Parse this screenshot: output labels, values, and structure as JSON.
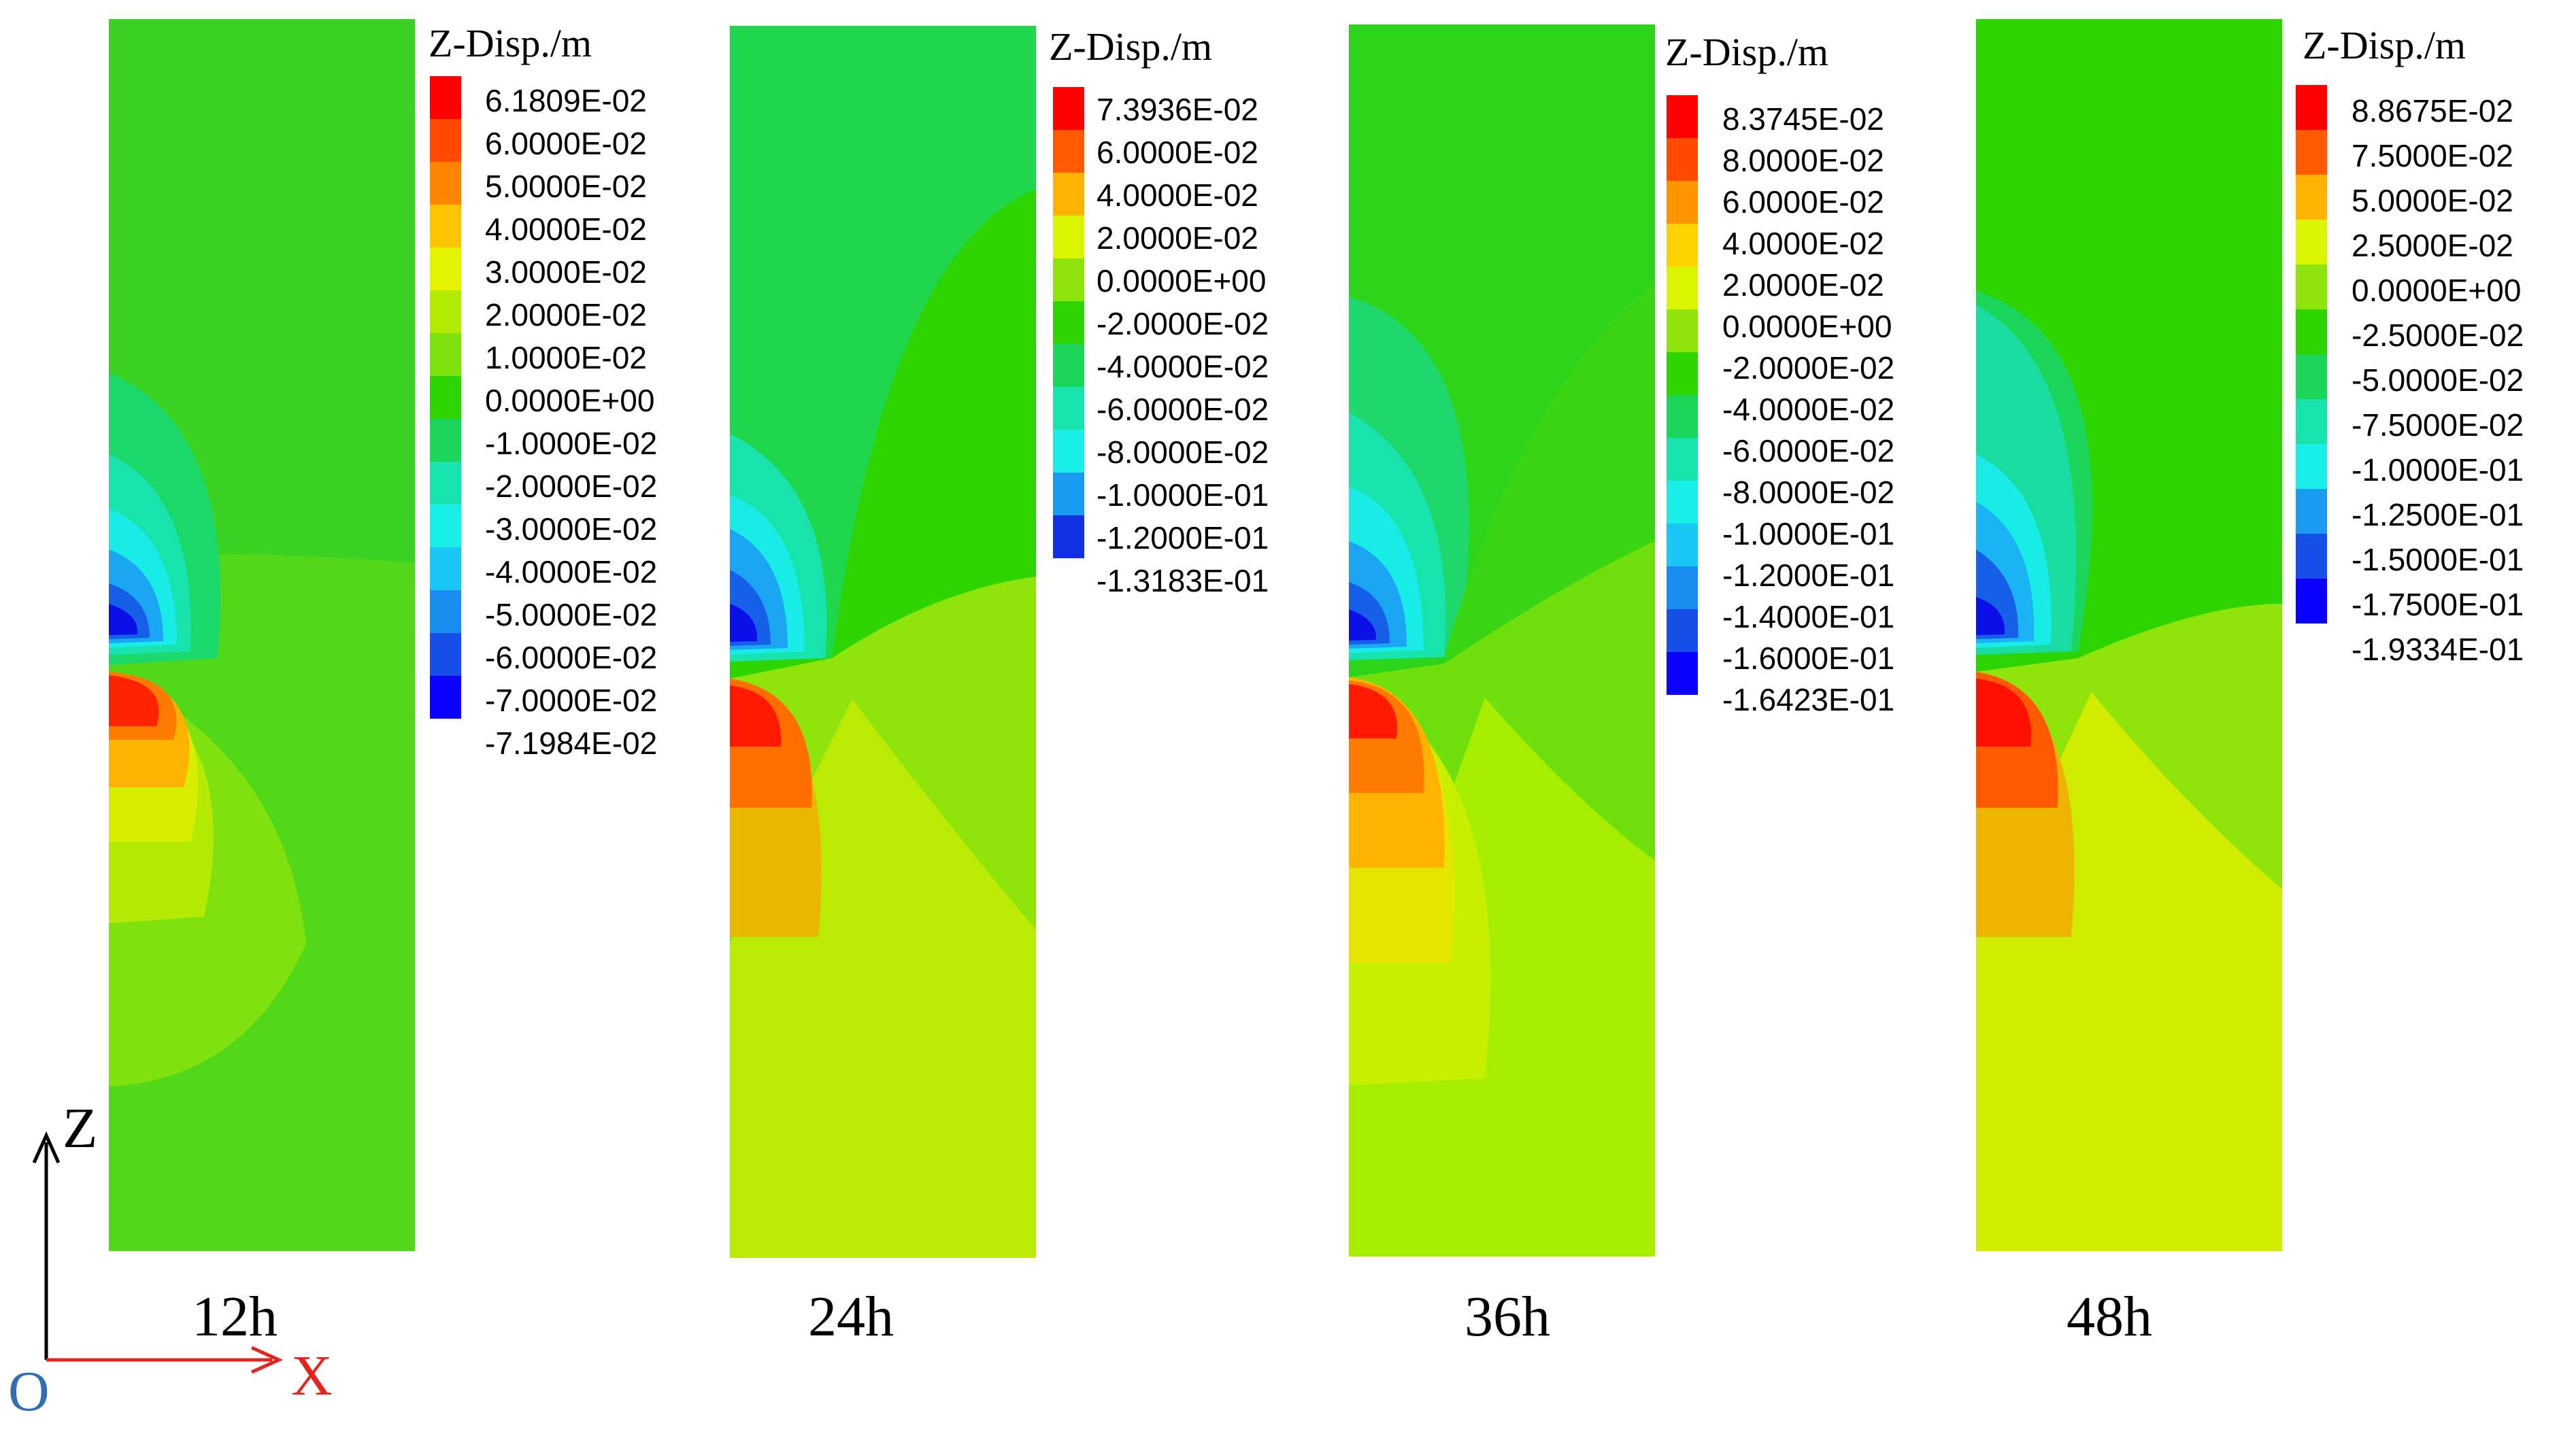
{
  "legend_title": "Z-Disp./m",
  "axes": {
    "z": "Z",
    "x": "X",
    "origin": "O"
  },
  "colors": {
    "axis_z": "#000000",
    "axis_x": "#e8221d",
    "origin": "#2e6eb5",
    "palette": [
      "#ff0000",
      "#ff4a00",
      "#ff8400",
      "#ffb300",
      "#ffe600",
      "#dcf500",
      "#a9ee00",
      "#6ee000",
      "#2ed400",
      "#1bd65a",
      "#19e3ad",
      "#19eee8",
      "#1ac6f3",
      "#1a8ef0",
      "#1650e8",
      "#1125de",
      "#0b00ff"
    ]
  },
  "panels": [
    {
      "time": "12h",
      "legend_values": [
        "6.1809E-02",
        "6.0000E-02",
        "5.0000E-02",
        "4.0000E-02",
        "3.0000E-02",
        "2.0000E-02",
        "1.0000E-02",
        "0.0000E+00",
        "-1.0000E-02",
        "-2.0000E-02",
        "-3.0000E-02",
        "-4.0000E-02",
        "-5.0000E-02",
        "-6.0000E-02",
        "-7.0000E-02",
        "-7.1984E-02"
      ]
    },
    {
      "time": "24h",
      "legend_values": [
        "7.3936E-02",
        "6.0000E-02",
        "4.0000E-02",
        "2.0000E-02",
        "0.0000E+00",
        "-2.0000E-02",
        "-4.0000E-02",
        "-6.0000E-02",
        "-8.0000E-02",
        "-1.0000E-01",
        "-1.2000E-01",
        "-1.3183E-01"
      ]
    },
    {
      "time": "36h",
      "legend_values": [
        "8.3745E-02",
        "8.0000E-02",
        "6.0000E-02",
        "4.0000E-02",
        "2.0000E-02",
        "0.0000E+00",
        "-2.0000E-02",
        "-4.0000E-02",
        "-6.0000E-02",
        "-8.0000E-02",
        "-1.0000E-01",
        "-1.2000E-01",
        "-1.4000E-01",
        "-1.6000E-01",
        "-1.6423E-01"
      ]
    },
    {
      "time": "48h",
      "legend_values": [
        "8.8675E-02",
        "7.5000E-02",
        "5.0000E-02",
        "2.5000E-02",
        "0.0000E+00",
        "-2.5000E-02",
        "-5.0000E-02",
        "-7.5000E-02",
        "-1.0000E-01",
        "-1.2500E-01",
        "-1.5000E-01",
        "-1.7500E-01",
        "-1.9334E-01"
      ]
    }
  ]
}
